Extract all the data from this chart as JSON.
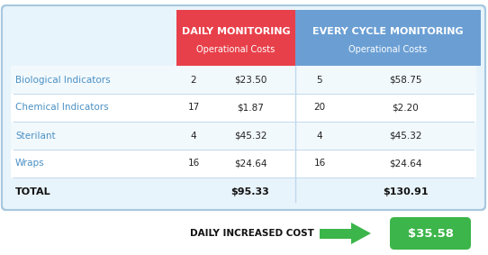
{
  "header1_title": "DAILY MONITORING",
  "header1_sub": "Operational Costs",
  "header2_title": "EVERY CYCLE MONITORING",
  "header2_sub": "Operational Costs",
  "header1_color": "#E8404A",
  "header2_color": "#6B9FD4",
  "rows": [
    {
      "label": "Biological Indicators",
      "qty1": "2",
      "cost1": "$23.50",
      "qty2": "5",
      "cost2": "$58.75"
    },
    {
      "label": "Chemical Indicators",
      "qty1": "17",
      "cost1": "$1.87",
      "qty2": "20",
      "cost2": "$2.20"
    },
    {
      "label": "Sterilant",
      "qty1": "4",
      "cost1": "$45.32",
      "qty2": "4",
      "cost2": "$45.32"
    },
    {
      "label": "Wraps",
      "qty1": "16",
      "cost1": "$24.64",
      "qty2": "16",
      "cost2": "$24.64"
    }
  ],
  "total_label": "TOTAL",
  "total1": "$95.33",
  "total2": "$130.91",
  "footer_label": "DAILY INCREASED COST",
  "footer_value": "$35.58",
  "footer_arrow_color": "#3CB54A",
  "footer_value_bg": "#3CB54A",
  "label_color": "#4A90C4",
  "table_border_color": "#A8C8E0",
  "table_bg_color": "#E8F4FB",
  "divider_color": "#C0D8EC",
  "row_even_bg": "#F2F9FD",
  "row_odd_bg": "#FFFFFF"
}
